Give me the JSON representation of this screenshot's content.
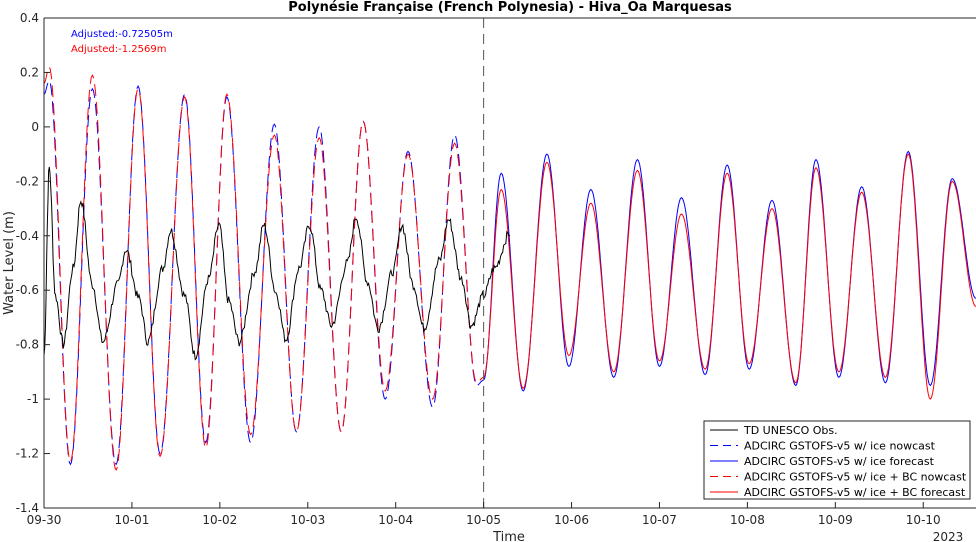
{
  "chart_data": {
    "type": "line",
    "title": "Polynésie Française (French Polynesia) - Hiva_Oa Marquesas",
    "xlabel": "Time",
    "ylabel": "Water Level (m)",
    "xlim": [
      0,
      10.6
    ],
    "ylim": [
      -1.4,
      0.4
    ],
    "y_ticks": [
      0.4,
      0.2,
      0,
      -0.2,
      -0.4,
      -0.6,
      -0.8,
      -1,
      -1.2,
      -1.4
    ],
    "x_ticks": [
      {
        "value": 0,
        "label": "09-30"
      },
      {
        "value": 1,
        "label": "10-01"
      },
      {
        "value": 2,
        "label": "10-02"
      },
      {
        "value": 3,
        "label": "10-03"
      },
      {
        "value": 4,
        "label": "10-04"
      },
      {
        "value": 5,
        "label": "10-05"
      },
      {
        "value": 6,
        "label": "10-06"
      },
      {
        "value": 7,
        "label": "10-07"
      },
      {
        "value": 8,
        "label": "10-08"
      },
      {
        "value": 9,
        "label": "10-09"
      },
      {
        "value": 10,
        "label": "10-10"
      }
    ],
    "year_label": "2023",
    "nowcast_forecast_divider_x": 5,
    "grid": false,
    "legend_position": "bottom-right",
    "annotations": [
      {
        "text": "Adjusted:-0.72505m",
        "color": "#0000ff"
      },
      {
        "text": "Adjusted:-1.2569m",
        "color": "#ff0000"
      }
    ],
    "tide_period_days": 0.5175,
    "series": [
      {
        "name": "TD UNESCO Obs.",
        "color": "#000000",
        "dash": "solid",
        "x": [
          0.0,
          0.06,
          0.13,
          0.22,
          0.33,
          0.42,
          0.55,
          0.67,
          0.84,
          0.93,
          1.08,
          1.18,
          1.35,
          1.44,
          1.6,
          1.72,
          1.87,
          1.99,
          2.1,
          2.22,
          2.4,
          2.5,
          2.64,
          2.75,
          2.9,
          3.02,
          3.15,
          3.27,
          3.45,
          3.55,
          3.68,
          3.8,
          3.97,
          4.07,
          4.2,
          4.32,
          4.5,
          4.6,
          4.75,
          4.86,
          5.0,
          5.12,
          5.3
        ],
        "y": [
          -0.84,
          -0.15,
          -0.62,
          -0.8,
          -0.52,
          -0.27,
          -0.58,
          -0.79,
          -0.58,
          -0.45,
          -0.63,
          -0.79,
          -0.52,
          -0.38,
          -0.62,
          -0.84,
          -0.56,
          -0.36,
          -0.64,
          -0.79,
          -0.53,
          -0.36,
          -0.61,
          -0.78,
          -0.52,
          -0.36,
          -0.6,
          -0.73,
          -0.5,
          -0.33,
          -0.57,
          -0.74,
          -0.53,
          -0.36,
          -0.58,
          -0.74,
          -0.49,
          -0.34,
          -0.56,
          -0.73,
          -0.62,
          -0.52,
          -0.39
        ]
      },
      {
        "name": "ADCIRC GSTOFS-v5 w/ ice nowcast",
        "color": "#0000ff",
        "dash": "dashed",
        "x": [
          0.0,
          0.06,
          0.3,
          0.55,
          0.82,
          1.07,
          1.32,
          1.6,
          1.84,
          2.08,
          2.35,
          2.62,
          2.87,
          3.13,
          3.38,
          3.63,
          3.88,
          4.14,
          4.42,
          4.67,
          4.92,
          5.0
        ],
        "y": [
          0.12,
          0.17,
          -1.24,
          0.14,
          -1.24,
          0.15,
          -1.2,
          0.12,
          -1.16,
          0.11,
          -1.16,
          0.01,
          -1.12,
          0.0,
          -1.12,
          0.02,
          -1.0,
          -0.09,
          -1.03,
          -0.03,
          -0.95,
          -0.93
        ]
      },
      {
        "name": "ADCIRC GSTOFS-v5 w/ ice forecast",
        "color": "#0000ff",
        "dash": "solid",
        "x": [
          5.0,
          5.2,
          5.45,
          5.72,
          5.97,
          6.22,
          6.48,
          6.75,
          7.0,
          7.25,
          7.52,
          7.77,
          8.02,
          8.28,
          8.55,
          8.78,
          9.04,
          9.3,
          9.57,
          9.83,
          10.08,
          10.33,
          10.6
        ],
        "y": [
          -0.93,
          -0.17,
          -0.97,
          -0.1,
          -0.88,
          -0.23,
          -0.92,
          -0.12,
          -0.88,
          -0.26,
          -0.91,
          -0.14,
          -0.89,
          -0.27,
          -0.95,
          -0.12,
          -0.92,
          -0.22,
          -0.94,
          -0.09,
          -0.95,
          -0.19,
          -0.63
        ]
      },
      {
        "name": "ADCIRC GSTOFS-v5 w/ ice + BC nowcast",
        "color": "#ff0000",
        "dash": "dashed",
        "x": [
          0.0,
          0.06,
          0.3,
          0.55,
          0.82,
          1.07,
          1.32,
          1.6,
          1.84,
          2.08,
          2.35,
          2.62,
          2.87,
          3.13,
          3.38,
          3.63,
          3.88,
          4.14,
          4.42,
          4.67,
          4.92,
          5.0
        ],
        "y": [
          0.16,
          0.22,
          -1.23,
          0.19,
          -1.26,
          0.14,
          -1.21,
          0.11,
          -1.18,
          0.12,
          -1.13,
          -0.03,
          -1.12,
          -0.04,
          -1.12,
          0.02,
          -0.97,
          -0.1,
          -1.0,
          -0.06,
          -0.94,
          -0.92
        ]
      },
      {
        "name": "ADCIRC GSTOFS-v5 w/ ice + BC forecast",
        "color": "#ff0000",
        "dash": "solid",
        "x": [
          5.0,
          5.2,
          5.45,
          5.72,
          5.97,
          6.22,
          6.48,
          6.75,
          7.0,
          7.25,
          7.52,
          7.77,
          8.02,
          8.28,
          8.55,
          8.78,
          9.04,
          9.3,
          9.57,
          9.83,
          10.08,
          10.33,
          10.6
        ],
        "y": [
          -0.92,
          -0.23,
          -0.96,
          -0.13,
          -0.84,
          -0.28,
          -0.9,
          -0.16,
          -0.86,
          -0.32,
          -0.89,
          -0.17,
          -0.87,
          -0.3,
          -0.94,
          -0.15,
          -0.9,
          -0.24,
          -0.92,
          -0.1,
          -1.0,
          -0.2,
          -0.66
        ]
      }
    ]
  }
}
